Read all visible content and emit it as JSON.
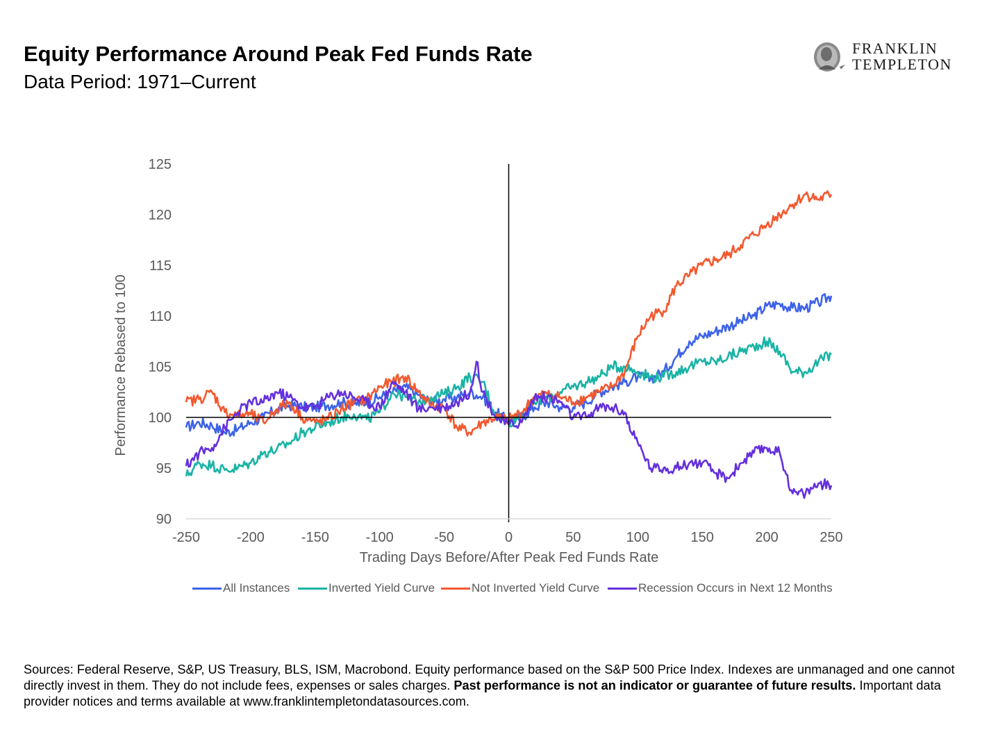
{
  "header": {
    "title": "Equity Performance Around Peak Fed Funds Rate",
    "subtitle": "Data Period: 1971–Current"
  },
  "logo": {
    "line1": "FRANKLIN",
    "line2": "TEMPLETON"
  },
  "chart_data": {
    "type": "line",
    "xlabel": "Trading Days Before/After Peak Fed Funds Rate",
    "ylabel": "Performance Rebased to 100",
    "xlim": [
      -250,
      250
    ],
    "ylim": [
      90,
      125
    ],
    "xticks": [
      -250,
      -200,
      -150,
      -100,
      -50,
      0,
      50,
      100,
      150,
      200,
      250
    ],
    "yticks": [
      90,
      95,
      100,
      105,
      110,
      115,
      120,
      125
    ],
    "grid": false,
    "legend_position": "bottom",
    "reference_lines": {
      "x": 0,
      "y": 100
    },
    "series": [
      {
        "name": "All Instances",
        "color": "#3D63E8",
        "points": [
          [
            -250,
            99.0
          ],
          [
            -240,
            99.5
          ],
          [
            -230,
            99.2
          ],
          [
            -220,
            98.5
          ],
          [
            -210,
            98.8
          ],
          [
            -200,
            99.5
          ],
          [
            -190,
            100.0
          ],
          [
            -180,
            100.8
          ],
          [
            -170,
            101.2
          ],
          [
            -160,
            101.0
          ],
          [
            -150,
            101.0
          ],
          [
            -140,
            101.2
          ],
          [
            -130,
            101.5
          ],
          [
            -120,
            101.3
          ],
          [
            -110,
            101.5
          ],
          [
            -100,
            102.0
          ],
          [
            -90,
            102.5
          ],
          [
            -80,
            103.0
          ],
          [
            -70,
            102.2
          ],
          [
            -60,
            101.5
          ],
          [
            -50,
            101.8
          ],
          [
            -40,
            102.0
          ],
          [
            -30,
            102.5
          ],
          [
            -20,
            102.0
          ],
          [
            -10,
            100.5
          ],
          [
            0,
            99.6
          ],
          [
            10,
            100.0
          ],
          [
            20,
            101.0
          ],
          [
            30,
            101.5
          ],
          [
            40,
            101.0
          ],
          [
            50,
            101.0
          ],
          [
            60,
            101.5
          ],
          [
            70,
            102.5
          ],
          [
            80,
            103.0
          ],
          [
            90,
            103.5
          ],
          [
            100,
            104.0
          ],
          [
            110,
            103.8
          ],
          [
            120,
            104.5
          ],
          [
            130,
            106.0
          ],
          [
            140,
            107.5
          ],
          [
            150,
            108.0
          ],
          [
            160,
            108.5
          ],
          [
            170,
            109.0
          ],
          [
            180,
            109.5
          ],
          [
            190,
            110.0
          ],
          [
            200,
            111.0
          ],
          [
            210,
            111.2
          ],
          [
            220,
            110.8
          ],
          [
            230,
            110.8
          ],
          [
            240,
            111.3
          ],
          [
            250,
            112.0
          ]
        ]
      },
      {
        "name": "Inverted Yield Curve",
        "color": "#1AB3A5",
        "points": [
          [
            -250,
            94.2
          ],
          [
            -240,
            95.5
          ],
          [
            -230,
            95.3
          ],
          [
            -220,
            94.8
          ],
          [
            -210,
            95.0
          ],
          [
            -200,
            95.5
          ],
          [
            -190,
            96.5
          ],
          [
            -180,
            96.8
          ],
          [
            -170,
            97.5
          ],
          [
            -160,
            98.5
          ],
          [
            -150,
            99.0
          ],
          [
            -140,
            99.5
          ],
          [
            -130,
            100.0
          ],
          [
            -120,
            100.3
          ],
          [
            -110,
            99.8
          ],
          [
            -100,
            100.5
          ],
          [
            -90,
            102.5
          ],
          [
            -80,
            102.0
          ],
          [
            -70,
            101.5
          ],
          [
            -60,
            102.0
          ],
          [
            -50,
            102.3
          ],
          [
            -40,
            103.0
          ],
          [
            -30,
            104.0
          ],
          [
            -20,
            103.5
          ],
          [
            -10,
            100.2
          ],
          [
            0,
            99.5
          ],
          [
            10,
            100.2
          ],
          [
            20,
            101.5
          ],
          [
            30,
            102.0
          ],
          [
            40,
            102.5
          ],
          [
            50,
            103.0
          ],
          [
            60,
            103.5
          ],
          [
            70,
            104.0
          ],
          [
            80,
            105.0
          ],
          [
            90,
            105.0
          ],
          [
            100,
            104.5
          ],
          [
            110,
            104.0
          ],
          [
            120,
            104.0
          ],
          [
            130,
            104.5
          ],
          [
            140,
            105.0
          ],
          [
            150,
            105.5
          ],
          [
            160,
            105.5
          ],
          [
            170,
            106.0
          ],
          [
            180,
            106.5
          ],
          [
            190,
            107.0
          ],
          [
            200,
            107.5
          ],
          [
            210,
            106.5
          ],
          [
            220,
            104.5
          ],
          [
            230,
            104.5
          ],
          [
            240,
            105.5
          ],
          [
            250,
            106.2
          ]
        ]
      },
      {
        "name": "Not Inverted Yield Curve",
        "color": "#F2592F",
        "points": [
          [
            -250,
            101.5
          ],
          [
            -240,
            101.8
          ],
          [
            -230,
            102.5
          ],
          [
            -220,
            100.5
          ],
          [
            -210,
            100.2
          ],
          [
            -200,
            100.3
          ],
          [
            -190,
            99.5
          ],
          [
            -180,
            100.8
          ],
          [
            -170,
            101.5
          ],
          [
            -160,
            100.0
          ],
          [
            -150,
            99.5
          ],
          [
            -140,
            99.8
          ],
          [
            -130,
            100.8
          ],
          [
            -120,
            101.5
          ],
          [
            -110,
            101.8
          ],
          [
            -100,
            103.0
          ],
          [
            -90,
            103.5
          ],
          [
            -80,
            104.0
          ],
          [
            -70,
            102.5
          ],
          [
            -60,
            101.2
          ],
          [
            -50,
            101.0
          ],
          [
            -40,
            99.0
          ],
          [
            -30,
            98.5
          ],
          [
            -20,
            99.5
          ],
          [
            -10,
            100.0
          ],
          [
            0,
            99.8
          ],
          [
            10,
            100.5
          ],
          [
            20,
            102.0
          ],
          [
            30,
            102.3
          ],
          [
            40,
            102.0
          ],
          [
            50,
            101.5
          ],
          [
            60,
            102.0
          ],
          [
            70,
            102.5
          ],
          [
            80,
            103.0
          ],
          [
            90,
            104.5
          ],
          [
            100,
            108.0
          ],
          [
            110,
            110.0
          ],
          [
            120,
            110.5
          ],
          [
            130,
            113.0
          ],
          [
            140,
            114.0
          ],
          [
            150,
            115.0
          ],
          [
            160,
            115.5
          ],
          [
            170,
            116.0
          ],
          [
            180,
            117.0
          ],
          [
            190,
            118.0
          ],
          [
            200,
            119.0
          ],
          [
            210,
            120.0
          ],
          [
            220,
            121.0
          ],
          [
            230,
            122.0
          ],
          [
            240,
            121.5
          ],
          [
            250,
            122.0
          ]
        ]
      },
      {
        "name": "Recession Occurs in Next 12 Months",
        "color": "#6430DC",
        "points": [
          [
            -250,
            95.2
          ],
          [
            -240,
            96.5
          ],
          [
            -230,
            97.0
          ],
          [
            -220,
            99.0
          ],
          [
            -210,
            100.5
          ],
          [
            -200,
            101.5
          ],
          [
            -190,
            101.5
          ],
          [
            -180,
            102.5
          ],
          [
            -170,
            102.0
          ],
          [
            -160,
            101.0
          ],
          [
            -150,
            101.0
          ],
          [
            -140,
            102.0
          ],
          [
            -130,
            102.5
          ],
          [
            -120,
            102.0
          ],
          [
            -110,
            101.5
          ],
          [
            -100,
            101.0
          ],
          [
            -90,
            103.5
          ],
          [
            -80,
            102.5
          ],
          [
            -70,
            100.8
          ],
          [
            -60,
            101.0
          ],
          [
            -50,
            101.0
          ],
          [
            -40,
            101.5
          ],
          [
            -30,
            102.5
          ],
          [
            -25,
            105.5
          ],
          [
            -20,
            102.5
          ],
          [
            -10,
            100.0
          ],
          [
            0,
            99.3
          ],
          [
            10,
            99.5
          ],
          [
            20,
            102.0
          ],
          [
            30,
            102.0
          ],
          [
            40,
            101.5
          ],
          [
            50,
            100.0
          ],
          [
            60,
            100.0
          ],
          [
            70,
            101.0
          ],
          [
            80,
            101.0
          ],
          [
            90,
            100.5
          ],
          [
            95,
            98.5
          ],
          [
            100,
            97.5
          ],
          [
            110,
            95.0
          ],
          [
            120,
            95.0
          ],
          [
            130,
            95.0
          ],
          [
            140,
            95.5
          ],
          [
            150,
            95.5
          ],
          [
            160,
            94.5
          ],
          [
            170,
            94.0
          ],
          [
            180,
            95.5
          ],
          [
            190,
            96.5
          ],
          [
            200,
            97.0
          ],
          [
            210,
            96.5
          ],
          [
            220,
            92.5
          ],
          [
            230,
            92.5
          ],
          [
            240,
            93.5
          ],
          [
            250,
            93.3
          ]
        ]
      }
    ]
  },
  "footnote": {
    "text": "Sources: Federal Reserve, S&P, US Treasury, BLS, ISM, Macrobond. Equity performance based on the S&P 500 Price Index. Indexes are unmanaged and one cannot directly invest in them. They do not include fees, expenses or sales charges. ",
    "bold": "Past performance is not an indicator or guarantee of future results.",
    "text2": " Important data provider notices and terms available at www.franklintempletondatasources.com."
  }
}
